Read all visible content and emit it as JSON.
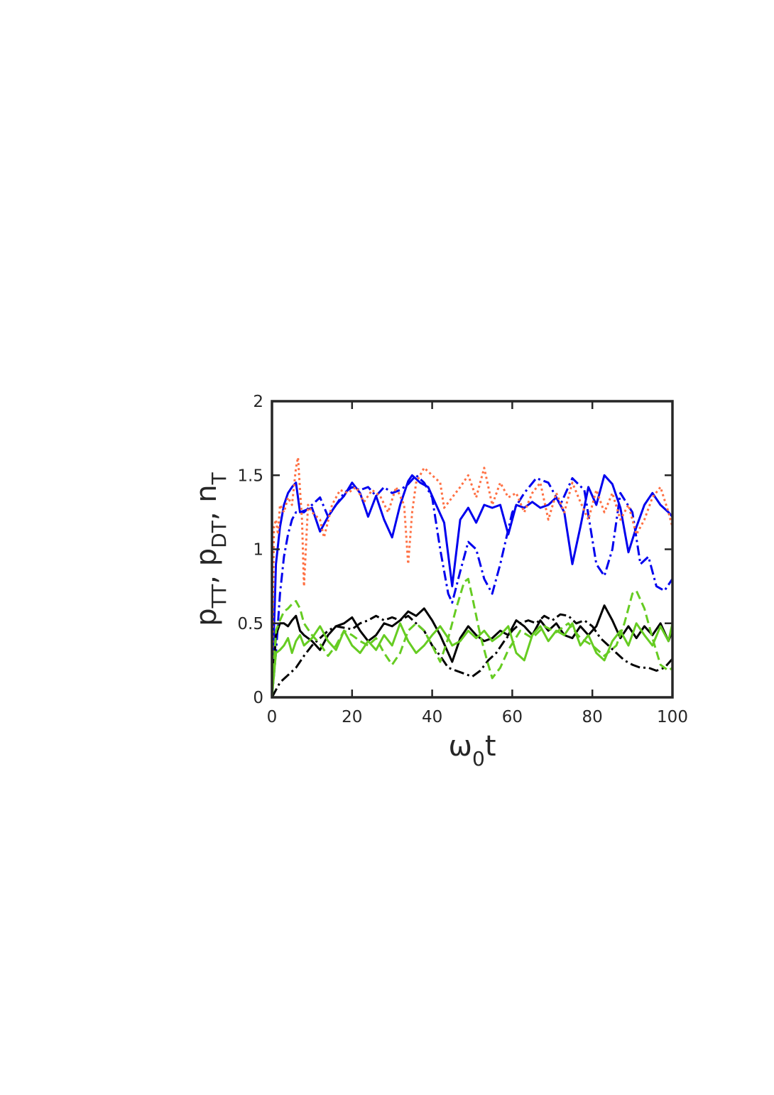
{
  "chart_data": {
    "type": "line",
    "xlabel": {
      "main": "ω",
      "sub": "0",
      "tail": "t"
    },
    "ylabel": [
      {
        "main": "p",
        "sub": "TT"
      },
      {
        "main": ", p",
        "sub": "DT"
      },
      {
        "main": ", n",
        "sub": "T"
      }
    ],
    "xlim": [
      0,
      100
    ],
    "ylim": [
      0,
      2
    ],
    "xticks": [
      0,
      20,
      40,
      60,
      80,
      100
    ],
    "xtick_labels": [
      "0",
      "20",
      "40",
      "60",
      "80",
      "100"
    ],
    "yticks": [
      0,
      0.5,
      1,
      1.5,
      2
    ],
    "ytick_labels": [
      "0",
      "0.5",
      "1",
      "1.5",
      "2"
    ],
    "grid": false,
    "legend": "none",
    "series": [
      {
        "color": "#0000ee",
        "style": "solid",
        "x": [
          0,
          1,
          2,
          3,
          4,
          5,
          6,
          7,
          8,
          10,
          12,
          14,
          16,
          18,
          20,
          22,
          24,
          26,
          28,
          30,
          32,
          34,
          35,
          37,
          39,
          41,
          43,
          45,
          47,
          49,
          51,
          53,
          55,
          57,
          59,
          61,
          63,
          65,
          67,
          69,
          71,
          73,
          75,
          77,
          79,
          81,
          83,
          85,
          87,
          89,
          91,
          93,
          95,
          97,
          99,
          100
        ],
        "y": [
          0,
          0.9,
          1.15,
          1.3,
          1.38,
          1.42,
          1.45,
          1.25,
          1.26,
          1.28,
          1.12,
          1.22,
          1.3,
          1.36,
          1.45,
          1.38,
          1.22,
          1.36,
          1.2,
          1.08,
          1.3,
          1.46,
          1.5,
          1.45,
          1.42,
          1.3,
          1.18,
          0.75,
          1.2,
          1.28,
          1.18,
          1.3,
          1.28,
          1.3,
          1.1,
          1.3,
          1.28,
          1.32,
          1.28,
          1.3,
          1.35,
          1.25,
          0.9,
          1.15,
          1.42,
          1.3,
          1.5,
          1.44,
          1.28,
          0.98,
          1.15,
          1.3,
          1.38,
          1.3,
          1.25,
          1.22
        ]
      },
      {
        "color": "#0000ee",
        "style": "dashdot",
        "x": [
          0,
          1,
          2,
          3,
          4,
          5,
          6,
          8,
          10,
          12,
          14,
          16,
          18,
          20,
          22,
          24,
          26,
          28,
          30,
          32,
          34,
          36,
          38,
          40,
          42,
          44,
          45,
          47,
          49,
          51,
          53,
          55,
          57,
          60,
          63,
          66,
          69,
          72,
          75,
          78,
          81,
          83,
          85,
          87,
          90,
          92,
          94,
          96,
          98,
          100
        ],
        "y": [
          0,
          0.3,
          0.7,
          0.95,
          1.1,
          1.2,
          1.25,
          1.25,
          1.3,
          1.35,
          1.22,
          1.3,
          1.38,
          1.42,
          1.4,
          1.42,
          1.36,
          1.42,
          1.38,
          1.4,
          1.44,
          1.5,
          1.45,
          1.35,
          1.0,
          0.7,
          0.64,
          0.85,
          1.05,
          1.0,
          0.8,
          0.7,
          0.9,
          1.25,
          1.38,
          1.48,
          1.45,
          1.3,
          1.48,
          1.4,
          0.9,
          0.82,
          1.0,
          1.38,
          1.25,
          0.9,
          0.95,
          0.75,
          0.72,
          0.8
        ]
      },
      {
        "color": "#ff7043",
        "style": "dotted",
        "x": [
          0,
          0.5,
          1,
          1.5,
          2,
          3,
          4,
          5,
          6,
          6.5,
          7,
          7.5,
          8,
          9,
          10,
          12,
          13,
          15,
          17,
          19,
          21,
          23,
          25,
          27,
          29,
          31,
          33,
          34,
          35,
          36,
          38,
          40,
          42,
          43,
          45,
          47,
          49,
          51,
          53,
          55,
          57,
          59,
          61,
          63,
          65,
          67,
          69,
          71,
          73,
          75,
          77,
          79,
          81,
          83,
          85,
          87,
          89,
          91,
          93,
          95,
          97,
          99,
          100
        ],
        "y": [
          0,
          1.15,
          1.2,
          1.1,
          1.3,
          1.25,
          1.35,
          1.3,
          1.55,
          1.62,
          1.4,
          1.2,
          0.75,
          1.3,
          1.25,
          1.2,
          1.08,
          1.3,
          1.4,
          1.38,
          1.42,
          1.32,
          1.4,
          1.36,
          1.25,
          1.42,
          1.3,
          0.9,
          1.25,
          1.45,
          1.55,
          1.5,
          1.45,
          1.28,
          1.35,
          1.42,
          1.5,
          1.35,
          1.55,
          1.3,
          1.45,
          1.35,
          1.38,
          1.25,
          1.38,
          1.45,
          1.2,
          1.38,
          1.25,
          1.45,
          1.32,
          1.2,
          1.4,
          1.25,
          1.38,
          1.2,
          1.3,
          1.1,
          1.2,
          1.35,
          1.42,
          1.25,
          1.15
        ]
      },
      {
        "color": "#000000",
        "style": "solid",
        "x": [
          0,
          1,
          2,
          3,
          4,
          5,
          6,
          7,
          8,
          10,
          12,
          14,
          16,
          18,
          20,
          22,
          24,
          26,
          28,
          30,
          32,
          34,
          36,
          38,
          40,
          42,
          44,
          45,
          47,
          49,
          51,
          53,
          55,
          57,
          59,
          61,
          63,
          65,
          67,
          69,
          71,
          73,
          75,
          77,
          79,
          81,
          83,
          85,
          87,
          89,
          91,
          93,
          95,
          97,
          99,
          100
        ],
        "y": [
          0,
          0.42,
          0.5,
          0.5,
          0.48,
          0.52,
          0.55,
          0.45,
          0.42,
          0.38,
          0.32,
          0.42,
          0.48,
          0.5,
          0.54,
          0.45,
          0.38,
          0.42,
          0.5,
          0.48,
          0.52,
          0.58,
          0.55,
          0.6,
          0.52,
          0.42,
          0.3,
          0.24,
          0.4,
          0.48,
          0.42,
          0.38,
          0.4,
          0.45,
          0.42,
          0.52,
          0.48,
          0.42,
          0.52,
          0.45,
          0.5,
          0.42,
          0.4,
          0.48,
          0.42,
          0.48,
          0.62,
          0.52,
          0.4,
          0.48,
          0.4,
          0.48,
          0.42,
          0.5,
          0.38,
          0.45
        ]
      },
      {
        "color": "#000000",
        "style": "dashdot",
        "x": [
          0,
          1,
          2,
          4,
          6,
          8,
          10,
          12,
          14,
          16,
          18,
          20,
          22,
          24,
          26,
          28,
          30,
          32,
          34,
          36,
          38,
          40,
          42,
          44,
          46,
          48,
          50,
          52,
          54,
          56,
          58,
          60,
          62,
          64,
          66,
          68,
          70,
          72,
          74,
          76,
          78,
          80,
          82,
          84,
          86,
          88,
          90,
          92,
          94,
          96,
          98,
          100
        ],
        "y": [
          0,
          0.05,
          0.1,
          0.15,
          0.2,
          0.28,
          0.35,
          0.4,
          0.45,
          0.48,
          0.47,
          0.46,
          0.5,
          0.52,
          0.55,
          0.52,
          0.54,
          0.52,
          0.55,
          0.5,
          0.45,
          0.35,
          0.28,
          0.2,
          0.18,
          0.16,
          0.14,
          0.18,
          0.25,
          0.3,
          0.38,
          0.45,
          0.5,
          0.52,
          0.5,
          0.55,
          0.52,
          0.56,
          0.55,
          0.5,
          0.52,
          0.48,
          0.4,
          0.35,
          0.3,
          0.25,
          0.22,
          0.2,
          0.2,
          0.18,
          0.2,
          0.26
        ]
      },
      {
        "color": "#66cc22",
        "style": "solid",
        "x": [
          0,
          1,
          2,
          3,
          4,
          5,
          6,
          7,
          8,
          10,
          12,
          14,
          16,
          18,
          20,
          22,
          24,
          26,
          28,
          30,
          32,
          34,
          36,
          38,
          40,
          42,
          44,
          45,
          47,
          49,
          51,
          53,
          55,
          57,
          59,
          61,
          63,
          65,
          67,
          69,
          71,
          73,
          75,
          77,
          79,
          81,
          83,
          85,
          87,
          89,
          91,
          93,
          95,
          97,
          99,
          100
        ],
        "y": [
          0,
          0.3,
          0.32,
          0.35,
          0.4,
          0.3,
          0.38,
          0.42,
          0.35,
          0.4,
          0.48,
          0.38,
          0.32,
          0.45,
          0.35,
          0.3,
          0.38,
          0.32,
          0.42,
          0.35,
          0.5,
          0.38,
          0.3,
          0.35,
          0.42,
          0.48,
          0.4,
          0.35,
          0.38,
          0.45,
          0.4,
          0.45,
          0.38,
          0.42,
          0.48,
          0.3,
          0.25,
          0.42,
          0.48,
          0.38,
          0.45,
          0.42,
          0.5,
          0.35,
          0.42,
          0.3,
          0.25,
          0.38,
          0.45,
          0.35,
          0.5,
          0.42,
          0.35,
          0.48,
          0.38,
          0.5
        ]
      },
      {
        "color": "#66cc22",
        "style": "dashed",
        "x": [
          0,
          1,
          2,
          3,
          4,
          5,
          6,
          7,
          8,
          10,
          12,
          14,
          16,
          18,
          20,
          22,
          24,
          26,
          28,
          30,
          32,
          34,
          36,
          38,
          40,
          42,
          44,
          46,
          48,
          49,
          50,
          52,
          54,
          55,
          57,
          59,
          62,
          65,
          68,
          71,
          74,
          77,
          80,
          83,
          86,
          88,
          90,
          91,
          93,
          95,
          97,
          99,
          100
        ],
        "y": [
          0,
          0.45,
          0.52,
          0.58,
          0.6,
          0.63,
          0.65,
          0.6,
          0.5,
          0.42,
          0.36,
          0.28,
          0.35,
          0.45,
          0.42,
          0.38,
          0.35,
          0.4,
          0.3,
          0.22,
          0.3,
          0.45,
          0.5,
          0.45,
          0.35,
          0.24,
          0.4,
          0.6,
          0.78,
          0.8,
          0.68,
          0.42,
          0.22,
          0.13,
          0.2,
          0.32,
          0.45,
          0.4,
          0.48,
          0.44,
          0.5,
          0.4,
          0.35,
          0.28,
          0.35,
          0.5,
          0.7,
          0.72,
          0.6,
          0.4,
          0.22,
          0.18,
          0.2
        ]
      }
    ]
  }
}
